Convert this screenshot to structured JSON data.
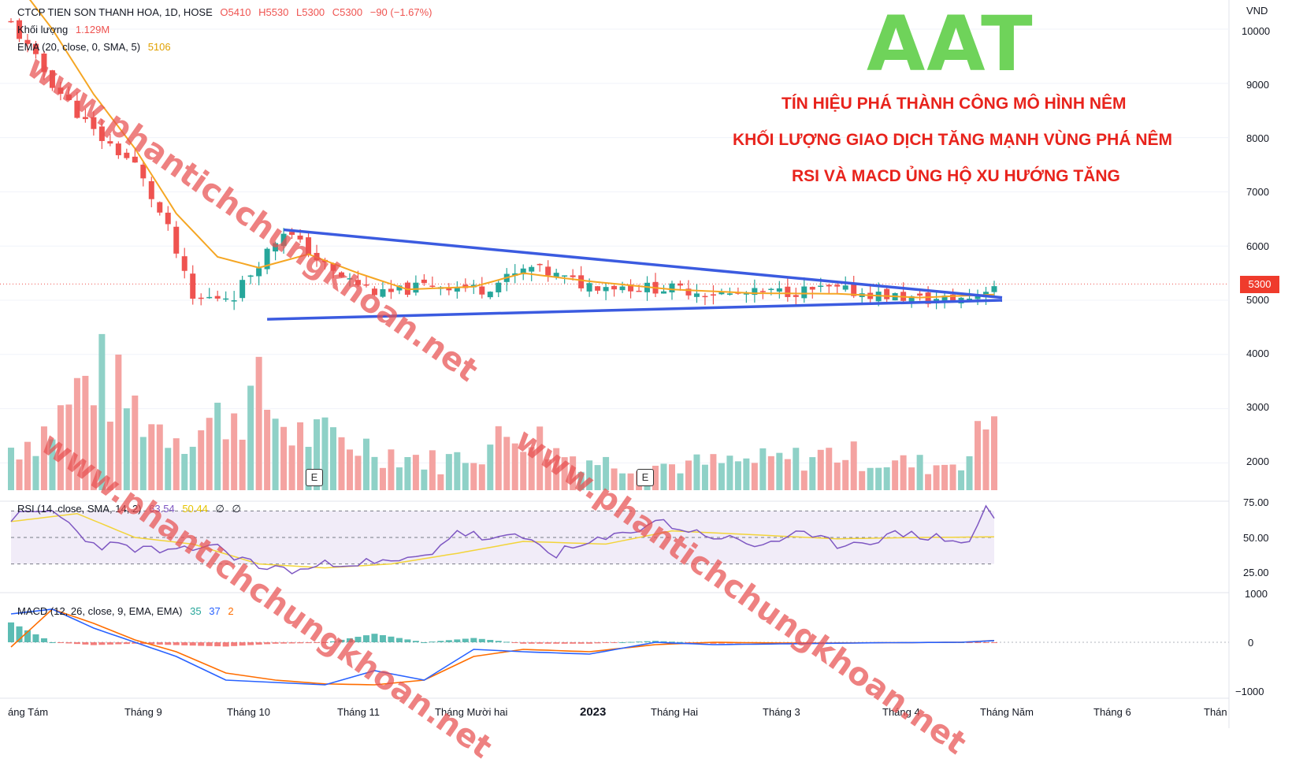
{
  "header": {
    "symbol_line": "CTCP TIEN SON THANH HOA, 1D, HOSE",
    "ohlc": [
      "O5410",
      "H5530",
      "L5300",
      "C5300",
      "−90 (−1.67%)"
    ],
    "volume_label": "Khối lượng",
    "volume_value": "1.129M",
    "ema_label": "EMA (20, close, 0, SMA, 5)",
    "ema_value": "5106"
  },
  "overlay": {
    "ticker": "AAT",
    "notes": [
      "TÍN HIỆU PHÁ THÀNH CÔNG MÔ HÌNH NÊM",
      "KHỐI LƯỢNG GIAO DỊCH TĂNG MẠNH VÙNG PHÁ NÊM",
      "RSI VÀ MACD ỦNG HỘ XU HƯỚNG TĂNG"
    ],
    "watermark": "www.phantichchungkhoan.net"
  },
  "rsi_legend": {
    "label": "RSI (14, close, SMA, 14, 2)",
    "values": [
      "63.54",
      "50.44",
      "∅",
      "∅"
    ]
  },
  "macd_legend": {
    "label": "MACD (12, 26, close, 9, EMA, EMA)",
    "values": [
      "35",
      "37",
      "2"
    ]
  },
  "currency": "VND",
  "last_price_tag": "5300",
  "event_marker": "E",
  "colors": {
    "up": "#26a69a",
    "down": "#ef5350",
    "volume_up": "#8fd1c7",
    "volume_down": "#f4a3a1",
    "ema": "#f5a623",
    "trendline": "#3b5be0",
    "rsi_line": "#7e57c2",
    "rsi_ma": "#f2d43a",
    "macd_line": "#2962ff",
    "signal_line": "#ff6d00"
  },
  "chart_data": [
    {
      "type": "candlestick",
      "title": "CTCP TIEN SON THANH HOA, 1D, HOSE",
      "x_tick_labels": [
        "áng Tám",
        "Tháng 9",
        "Tháng 10",
        "Tháng 11",
        "Tháng Mười hai",
        "2023",
        "Tháng Hai",
        "Tháng 3",
        "Tháng 4",
        "Tháng Năm",
        "Tháng 6",
        "Thán"
      ],
      "y_tick_labels": [
        "10000",
        "9000",
        "8000",
        "7000",
        "6000",
        "5000",
        "4000",
        "3000",
        "2000"
      ],
      "y_unit": "VND",
      "ylim": [
        1500,
        10500
      ],
      "last_close": 5300,
      "price_path": [
        [
          0,
          10100
        ],
        [
          5,
          9000
        ],
        [
          10,
          8100
        ],
        [
          15,
          7500
        ],
        [
          19,
          6300
        ],
        [
          22,
          5000
        ],
        [
          27,
          5100
        ],
        [
          33,
          6300
        ],
        [
          39,
          5500
        ],
        [
          45,
          5100
        ],
        [
          51,
          5300
        ],
        [
          57,
          5200
        ],
        [
          63,
          5600
        ],
        [
          69,
          5300
        ],
        [
          75,
          5250
        ],
        [
          81,
          5200
        ],
        [
          87,
          5100
        ],
        [
          93,
          5150
        ],
        [
          99,
          5200
        ],
        [
          105,
          5100
        ],
        [
          111,
          5000
        ],
        [
          116,
          5050
        ],
        [
          119,
          5300
        ]
      ],
      "ema_series": {
        "name": "EMA (20, close, 0, SMA, 5)",
        "path": [
          [
            0,
            11000
          ],
          [
            5,
            10000
          ],
          [
            10,
            8800
          ],
          [
            15,
            7800
          ],
          [
            20,
            6600
          ],
          [
            25,
            5800
          ],
          [
            30,
            5600
          ],
          [
            36,
            5850
          ],
          [
            42,
            5500
          ],
          [
            48,
            5200
          ],
          [
            56,
            5250
          ],
          [
            62,
            5500
          ],
          [
            70,
            5350
          ],
          [
            80,
            5200
          ],
          [
            90,
            5130
          ],
          [
            100,
            5120
          ],
          [
            110,
            5050
          ],
          [
            119,
            5106
          ]
        ]
      },
      "wedge_upper": [
        [
          33,
          6300
        ],
        [
          119,
          5050
        ]
      ],
      "wedge_lower": [
        [
          31,
          4650
        ],
        [
          119,
          5000
        ]
      ]
    },
    {
      "type": "bar",
      "title": "Khối lượng",
      "last_value": "1.129M",
      "profile": [
        [
          0,
          0.34
        ],
        [
          5,
          0.5
        ],
        [
          10,
          0.95
        ],
        [
          14,
          0.7
        ],
        [
          18,
          0.5
        ],
        [
          22,
          0.45
        ],
        [
          26,
          0.6
        ],
        [
          30,
          0.75
        ],
        [
          34,
          0.45
        ],
        [
          40,
          0.4
        ],
        [
          46,
          0.3
        ],
        [
          52,
          0.22
        ],
        [
          58,
          0.35
        ],
        [
          62,
          0.5
        ],
        [
          66,
          0.3
        ],
        [
          72,
          0.22
        ],
        [
          80,
          0.2
        ],
        [
          88,
          0.22
        ],
        [
          95,
          0.25
        ],
        [
          100,
          0.3
        ],
        [
          106,
          0.22
        ],
        [
          112,
          0.2
        ],
        [
          116,
          0.28
        ],
        [
          119,
          0.65
        ]
      ]
    },
    {
      "type": "line",
      "title": "RSI (14, close, SMA, 14, 2)",
      "y_tick_labels": [
        "75.00",
        "50.00",
        "25.00"
      ],
      "bands": [
        70,
        50,
        30
      ],
      "last_values": [
        63.54,
        50.44
      ],
      "rsi_path": [
        [
          0,
          65
        ],
        [
          5,
          70
        ],
        [
          10,
          45
        ],
        [
          15,
          42
        ],
        [
          20,
          38
        ],
        [
          24,
          45
        ],
        [
          30,
          28
        ],
        [
          35,
          25
        ],
        [
          40,
          32
        ],
        [
          45,
          30
        ],
        [
          50,
          35
        ],
        [
          54,
          55
        ],
        [
          58,
          48
        ],
        [
          62,
          50
        ],
        [
          66,
          38
        ],
        [
          70,
          45
        ],
        [
          74,
          52
        ],
        [
          78,
          63
        ],
        [
          82,
          55
        ],
        [
          86,
          50
        ],
        [
          90,
          44
        ],
        [
          95,
          52
        ],
        [
          100,
          45
        ],
        [
          104,
          48
        ],
        [
          108,
          53
        ],
        [
          112,
          50
        ],
        [
          116,
          46
        ],
        [
          117,
          60
        ],
        [
          118,
          72
        ],
        [
          119,
          63.54
        ]
      ],
      "rsi_ma_path": [
        [
          0,
          62
        ],
        [
          8,
          68
        ],
        [
          15,
          50
        ],
        [
          22,
          45
        ],
        [
          30,
          30
        ],
        [
          38,
          27
        ],
        [
          46,
          30
        ],
        [
          54,
          38
        ],
        [
          62,
          47
        ],
        [
          72,
          45
        ],
        [
          80,
          55
        ],
        [
          90,
          52
        ],
        [
          100,
          49
        ],
        [
          110,
          50
        ],
        [
          119,
          50.44
        ]
      ]
    },
    {
      "type": "line",
      "title": "MACD (12, 26, close, 9, EMA, EMA)",
      "y_tick_labels": [
        "1000",
        "0",
        "−1000"
      ],
      "ylim": [
        -1200,
        1000
      ],
      "last_values": [
        35,
        37,
        2
      ],
      "macd_path": [
        [
          0,
          600
        ],
        [
          5,
          700
        ],
        [
          10,
          300
        ],
        [
          15,
          0
        ],
        [
          20,
          -300
        ],
        [
          26,
          -800
        ],
        [
          32,
          -850
        ],
        [
          38,
          -900
        ],
        [
          44,
          -600
        ],
        [
          50,
          -800
        ],
        [
          56,
          -150
        ],
        [
          62,
          -200
        ],
        [
          70,
          -250
        ],
        [
          78,
          0
        ],
        [
          85,
          -50
        ],
        [
          95,
          -30
        ],
        [
          105,
          -10
        ],
        [
          115,
          0
        ],
        [
          119,
          35
        ]
      ],
      "signal_path": [
        [
          0,
          -100
        ],
        [
          5,
          700
        ],
        [
          10,
          400
        ],
        [
          15,
          50
        ],
        [
          20,
          -200
        ],
        [
          26,
          -650
        ],
        [
          32,
          -800
        ],
        [
          38,
          -880
        ],
        [
          44,
          -900
        ],
        [
          50,
          -800
        ],
        [
          56,
          -300
        ],
        [
          62,
          -150
        ],
        [
          70,
          -200
        ],
        [
          78,
          -50
        ],
        [
          85,
          0
        ],
        [
          95,
          -20
        ],
        [
          105,
          -10
        ],
        [
          115,
          0
        ],
        [
          119,
          37
        ]
      ]
    }
  ]
}
